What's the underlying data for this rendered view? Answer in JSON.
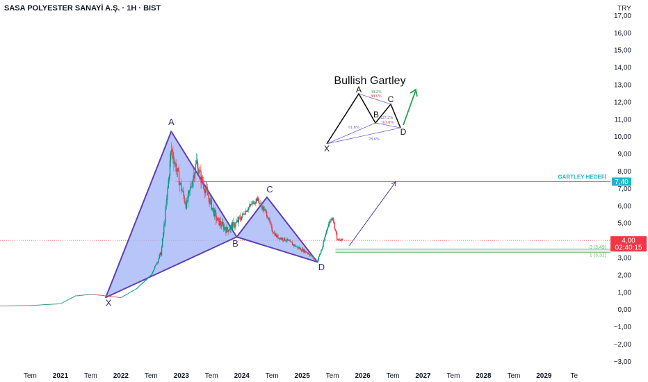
{
  "header": {
    "title": "SASA POLYESTER SANAYİ A.Ş. · 1H · BIST",
    "currency": "TRY"
  },
  "price_tag": {
    "price": "4,00",
    "countdown": "02:40:15"
  },
  "target_tag": {
    "label": "GARTLEY HEDEFİ",
    "value": "7,40"
  },
  "fib_zone_labels": {
    "zero": "0 (3,49)",
    "one": "1 (3,31)"
  },
  "legend_diagram": {
    "title": "Bullish Gartley",
    "points": [
      "X",
      "A",
      "B",
      "C",
      "D"
    ],
    "ratios": [
      "38.2%",
      "88.6%",
      "61.8%",
      "127.2%",
      "161.8%",
      "78.6%"
    ]
  },
  "chart_data": {
    "type": "line",
    "symbol": "SASA",
    "interval": "1H",
    "exchange": "BIST",
    "y_axis": {
      "ticks": [
        "17,00",
        "16,00",
        "15,00",
        "14,00",
        "13,00",
        "12,00",
        "11,00",
        "10,00",
        "9,00",
        "8,00",
        "7,00",
        "6,00",
        "5,00",
        "4,00",
        "3,00",
        "2,00",
        "1,00",
        "0,00",
        "−1,00",
        "−2,00",
        "−3,00"
      ],
      "ylim": [
        -3.0,
        17.0
      ]
    },
    "x_axis": {
      "ticks": [
        "Tem",
        "2021",
        "Tem",
        "2022",
        "Tem",
        "2023",
        "Tem",
        "2024",
        "Tem",
        "2025",
        "Tem",
        "2026",
        "Tem",
        "2027",
        "Tem",
        "2028",
        "Tem",
        "2029",
        "Te"
      ]
    },
    "series": [
      {
        "name": "",
        "x": [
          "2020-01",
          "2020-07",
          "2021-01",
          "2021-04",
          "2021-07",
          "2021-10",
          "2022-01",
          "2022-04",
          "2022-07",
          "2022-09",
          "2022-10",
          "2022-11",
          "2023-01",
          "2023-02",
          "2023-04",
          "2023-05",
          "2023-06",
          "2023-08",
          "2023-10",
          "2023-12",
          "2024-02",
          "2024-04",
          "2024-06",
          "2024-07",
          "2024-08",
          "2024-10",
          "2024-12",
          "2025-02",
          "2025-04",
          "2025-05",
          "2025-06",
          "2025-07",
          "2025-08",
          "2025-09"
        ],
        "values": [
          0.22,
          0.25,
          0.35,
          0.8,
          0.9,
          0.8,
          0.7,
          1.2,
          2.0,
          3.3,
          6.0,
          9.3,
          7.0,
          6.0,
          8.5,
          7.5,
          6.8,
          5.2,
          4.6,
          5.0,
          5.8,
          6.4,
          5.5,
          4.6,
          4.2,
          4.0,
          3.6,
          3.3,
          2.8,
          3.6,
          4.8,
          5.4,
          4.0,
          4.0
        ]
      }
    ],
    "pattern_points": [
      {
        "label": "X",
        "x": "2021-10",
        "y": 0.7
      },
      {
        "label": "A",
        "x": "2022-11",
        "y": 10.3
      },
      {
        "label": "B",
        "x": "2023-12",
        "y": 4.2
      },
      {
        "label": "C",
        "x": "2024-06",
        "y": 6.5
      },
      {
        "label": "D",
        "x": "2025-04",
        "y": 2.75
      }
    ],
    "current_price": 4.0,
    "target_price": 7.4,
    "fib_levels": [
      {
        "label": "0",
        "value": 3.49
      },
      {
        "label": "1",
        "value": 3.31
      }
    ]
  },
  "colors": {
    "pattern_fill": "#9fb1f5",
    "pattern_stroke": "#5f3fb5",
    "target_line": "#22b5c9",
    "fib_zone": "#66bb6a",
    "price_tag": "#f23645",
    "price_line": "#f23645",
    "up_candle": "#089981",
    "down_candle": "#f23645",
    "arrow": "#4a3aa0",
    "legend_arrow": "#22a34a"
  }
}
